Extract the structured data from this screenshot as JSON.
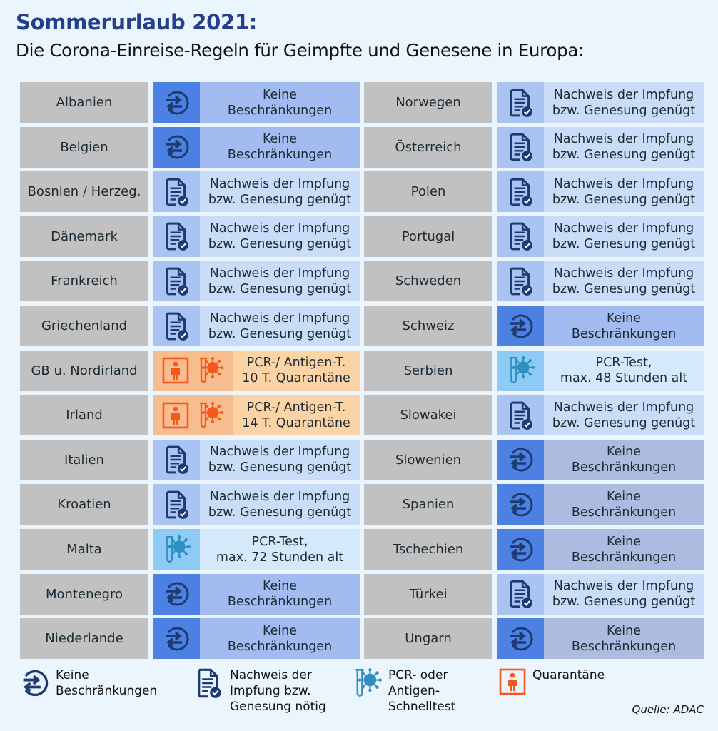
{
  "title": "Sommerurlaub 2021:",
  "subtitle": "Die Corona-Einreise-Regeln für Geimpfte und Genesene in Europa:",
  "colors": {
    "keine": {
      "icon": "#4d80e3",
      "text": "#a2bbf1"
    },
    "keine2": {
      "icon": "#4d80e3",
      "text": "#aebbe0"
    },
    "nachweis": {
      "icon": "#a9c4f2",
      "text": "#c9dcf8"
    },
    "pcr": {
      "icon": "#8ecbf4",
      "text": "#d4eafb"
    },
    "quar": {
      "icon": "#f8bd8e",
      "text": "#fcd3a4"
    },
    "icon_dark": "#1e3a6e",
    "orange": "#f4581c",
    "pcr_blue": "#2f8fc4"
  },
  "texts": {
    "keine": "Keine\nBeschränkungen",
    "nachweis": "Nachweis der Impfung\nbzw. Genesung genügt"
  },
  "left": [
    {
      "country": "Albanien",
      "type": "keine"
    },
    {
      "country": "Belgien",
      "type": "keine"
    },
    {
      "country": "Bosnien / Herzeg.",
      "type": "nachweis"
    },
    {
      "country": "Dänemark",
      "type": "nachweis"
    },
    {
      "country": "Frankreich",
      "type": "nachweis"
    },
    {
      "country": "Griechenland",
      "type": "nachweis"
    },
    {
      "country": "GB u. Nordirland",
      "type": "quar",
      "text": "PCR-/ Antigen-T.\n10 T. Quarantäne"
    },
    {
      "country": "Irland",
      "type": "quar",
      "text": "PCR-/ Antigen-T.\n14 T. Quarantäne"
    },
    {
      "country": "Italien",
      "type": "nachweis"
    },
    {
      "country": "Kroatien",
      "type": "nachweis"
    },
    {
      "country": "Malta",
      "type": "pcr",
      "text": "PCR-Test,\nmax. 72 Stunden alt"
    },
    {
      "country": "Montenegro",
      "type": "keine"
    },
    {
      "country": "Niederlande",
      "type": "keine"
    }
  ],
  "right": [
    {
      "country": "Norwegen",
      "type": "nachweis"
    },
    {
      "country": "Österreich",
      "type": "nachweis"
    },
    {
      "country": "Polen",
      "type": "nachweis"
    },
    {
      "country": "Portugal",
      "type": "nachweis"
    },
    {
      "country": "Schweden",
      "type": "nachweis"
    },
    {
      "country": "Schweiz",
      "type": "keine"
    },
    {
      "country": "Serbien",
      "type": "pcr",
      "text": "PCR-Test,\nmax. 48 Stunden alt"
    },
    {
      "country": "Slowakei",
      "type": "nachweis"
    },
    {
      "country": "Slowenien",
      "type": "keine2"
    },
    {
      "country": "Spanien",
      "type": "keine2"
    },
    {
      "country": "Tschechien",
      "type": "keine2"
    },
    {
      "country": "Türkei",
      "type": "nachweis"
    },
    {
      "country": "Ungarn",
      "type": "keine2"
    }
  ],
  "legend": [
    {
      "icon": "keine",
      "label": "Keine\nBeschränkungen"
    },
    {
      "icon": "nachweis",
      "label": "Nachweis der\nImpfung bzw.\nGenesung nötig"
    },
    {
      "icon": "pcr",
      "label": "PCR- oder\nAntigen-\nSchnelltest"
    },
    {
      "icon": "quar",
      "label": "Quarantäne"
    }
  ],
  "source": "Quelle: ADAC"
}
